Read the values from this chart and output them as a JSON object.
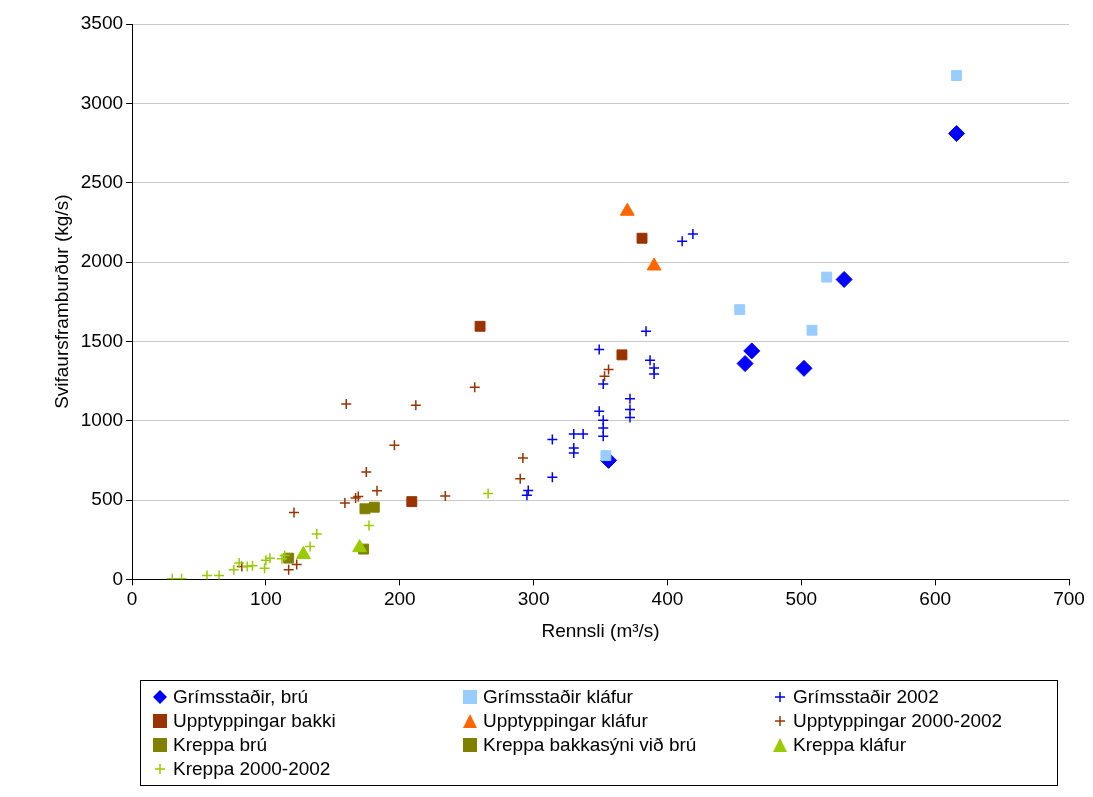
{
  "chart_data": {
    "type": "scatter",
    "xlabel": "Rennsli (m³/s)",
    "ylabel": "Svifaursframburður (kg/s)",
    "xlim": [
      0,
      700
    ],
    "xticks": [
      0,
      100,
      200,
      300,
      400,
      500,
      600,
      700
    ],
    "ylim": [
      0,
      3500
    ],
    "yticks": [
      0,
      500,
      1000,
      1500,
      2000,
      2500,
      3000,
      3500
    ],
    "grid": "y",
    "legend": "bottom",
    "series": [
      {
        "name": "Grímsstaðir, brú",
        "color": "#0000ff",
        "marker": "diamond",
        "x": [
          356,
          458,
          463,
          502,
          532,
          616
        ],
        "values": [
          750,
          1360,
          1440,
          1330,
          1890,
          2810
        ]
      },
      {
        "name": "Grímsstaðir kláfur",
        "color": "#99ccff",
        "marker": "square",
        "x": [
          354,
          454,
          508,
          519,
          616
        ],
        "values": [
          780,
          1700,
          1570,
          1905,
          3175
        ]
      },
      {
        "name": "Grímsstaðir 2002",
        "color": "#0000ff",
        "marker": "cross",
        "x": [
          419,
          411,
          384,
          349,
          387,
          390,
          390,
          352,
          349,
          352,
          352,
          352,
          372,
          372,
          372,
          330,
          337,
          330,
          330,
          314,
          314,
          296,
          295
        ],
        "values": [
          2177,
          2131,
          1564,
          1448,
          1381,
          1332,
          1294,
          1232,
          1059,
          1003,
          954,
          902,
          1139,
          1070,
          1021,
          916,
          916,
          828,
          796,
          881,
          643,
          560,
          530
        ]
      },
      {
        "name": "Upptyppingar bakki",
        "color": "#993300",
        "marker": "square",
        "x": [
          260,
          381,
          366,
          209
        ],
        "values": [
          1595,
          2150,
          1415,
          490
        ]
      },
      {
        "name": "Upptyppingar kláfur",
        "color": "#ff6600",
        "marker": "triangle",
        "x": [
          370,
          390
        ],
        "values": [
          2320,
          1975
        ]
      },
      {
        "name": "Upptyppingar 2000-2002",
        "color": "#993300",
        "marker": "cross",
        "x": [
          160,
          212,
          196,
          175,
          183,
          234,
          159,
          167,
          169,
          121,
          117,
          123,
          82,
          256,
          292,
          290,
          356,
          353
        ],
        "values": [
          1105,
          1097,
          845,
          677,
          559,
          525,
          481,
          513,
          523,
          422,
          61,
          94,
          82,
          1211,
          765,
          635,
          1322,
          1280
        ]
      },
      {
        "name": "Kreppa brú",
        "color": "#808000",
        "marker": "square",
        "x": [
          174,
          181
        ],
        "values": [
          445,
          455
        ]
      },
      {
        "name": "Kreppa bakkasýni við brú",
        "color": "#808000",
        "marker": "square",
        "x": [
          117,
          173
        ],
        "values": [
          134,
          191
        ]
      },
      {
        "name": "Kreppa kláfur",
        "color": "#99cc00",
        "marker": "triangle",
        "x": [
          128,
          170
        ],
        "values": [
          157,
          200
        ]
      },
      {
        "name": "Kreppa 2000-2002",
        "color": "#99cc00",
        "marker": "cross",
        "x": [
          30,
          37,
          56,
          65,
          76,
          80,
          86,
          90,
          99,
          100,
          103,
          112,
          114,
          133,
          138,
          177,
          266
        ],
        "values": [
          4,
          4,
          25,
          25,
          61,
          103,
          82,
          86,
          71,
          120,
          134,
          130,
          151,
          208,
          286,
          340,
          542
        ]
      }
    ]
  }
}
